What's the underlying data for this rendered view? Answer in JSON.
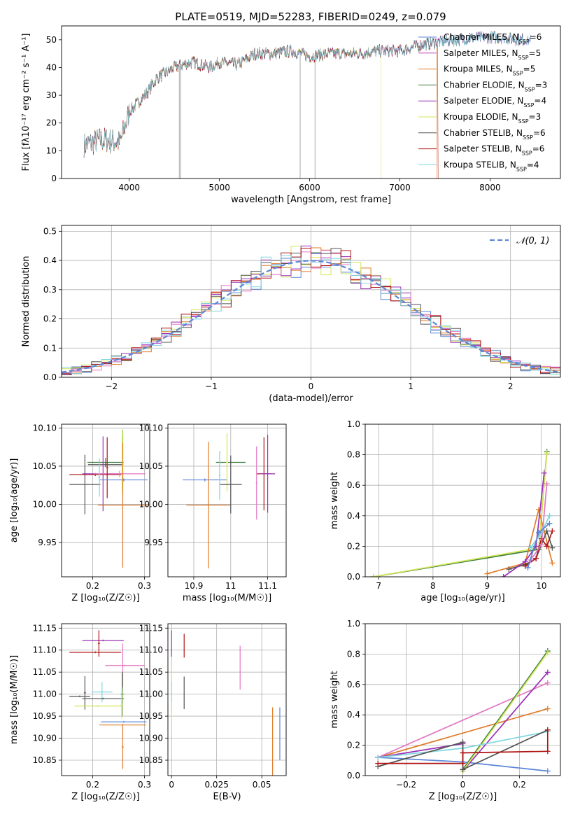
{
  "figure_title": "PLATE=0519, MJD=52283, FIBERID=0249, z=0.079",
  "colors": {
    "grid": "#b0b0b0",
    "Chabrier MILES": "#5b86d6",
    "Salpeter MILES": "#ba3fb8",
    "Kroupa MILES": "#e07b28",
    "Chabrier ELODIE": "#3a7d3a",
    "Salpeter ELODIE": "#9b2fb8",
    "Kroupa ELODIE": "#d4e65a",
    "Chabrier STELIB": "#555555",
    "Salpeter STELIB": "#b01515",
    "Kroupa STELIB": "#7fd6e0",
    "pink": "#e377c2",
    "lime": "#9ad03a"
  },
  "chart_data": [
    {
      "id": "spectrum",
      "type": "line",
      "title": "PLATE=0519, MJD=52283, FIBERID=0249, z=0.079",
      "xlabel": "wavelength [Angstrom, rest frame]",
      "ylabel": "Flux [fλ10⁻¹⁷ erg cm⁻² s⁻¹ A⁻¹]",
      "xlim": [
        3250,
        8780
      ],
      "ylim": [
        0,
        55
      ],
      "xticks": [
        4000,
        5000,
        6000,
        7000,
        8000
      ],
      "yticks": [
        0,
        10,
        20,
        30,
        40,
        50
      ],
      "grid": false,
      "legend_position": "top-right",
      "spectrum_trend": {
        "x": [
          3500,
          3700,
          3900,
          4000,
          4200,
          4300,
          4500,
          4700,
          4900,
          5000,
          5200,
          5400,
          5600,
          5800,
          5900,
          6000,
          6200,
          6500,
          6800,
          7000,
          7200,
          7400,
          7600,
          8000,
          8400
        ],
        "y": [
          12,
          14,
          13,
          24,
          31,
          36,
          40,
          42,
          40,
          42,
          41,
          45,
          45,
          46,
          45,
          44,
          45,
          45,
          46,
          46,
          48,
          49,
          50,
          51,
          50
        ]
      },
      "series": [
        {
          "name": "Chabrier MILES, N_SSP=6",
          "drop_x": null
        },
        {
          "name": "Salpeter MILES, N_SSP=5",
          "drop_x": null
        },
        {
          "name": "Kroupa MILES, N_SSP=5",
          "drop_x": 7410
        },
        {
          "name": "Chabrier ELODIE, N_SSP=3",
          "drop_x": null
        },
        {
          "name": "Salpeter ELODIE, N_SSP=4",
          "drop_x": null
        },
        {
          "name": "Kroupa ELODIE, N_SSP=3",
          "drop_x": 6790
        },
        {
          "name": "Chabrier STELIB, N_SSP=6",
          "drop_x": null
        },
        {
          "name": "Salpeter STELIB, N_SSP=6",
          "drop_x": 7420
        },
        {
          "name": "Kroupa STELIB, N_SSP=4",
          "drop_x": null
        }
      ],
      "legend_labels": [
        [
          "Chabrier MILES, N",
          "SSP",
          "=6"
        ],
        [
          "Salpeter MILES, N",
          "SSP",
          "=5"
        ],
        [
          "Kroupa MILES, N",
          "SSP",
          "=5"
        ],
        [
          "Chabrier ELODIE, N",
          "SSP",
          "=3"
        ],
        [
          "Salpeter ELODIE, N",
          "SSP",
          "=4"
        ],
        [
          "Kroupa ELODIE, N",
          "SSP",
          "=3"
        ],
        [
          "Chabrier STELIB, N",
          "SSP",
          "=6"
        ],
        [
          "Salpeter STELIB, N",
          "SSP",
          "=6"
        ],
        [
          "Kroupa STELIB, N",
          "SSP",
          "=4"
        ]
      ]
    },
    {
      "id": "residuals",
      "type": "line",
      "xlabel": "(data-model)/error",
      "ylabel": "Normed distribution",
      "xlim": [
        -2.5,
        2.5
      ],
      "ylim": [
        0,
        0.52
      ],
      "xticks": [
        -2,
        -1,
        0,
        1,
        2
      ],
      "yticks": [
        0.0,
        0.1,
        0.2,
        0.3,
        0.4,
        0.5
      ],
      "grid": true,
      "legend_position": "top-right",
      "reference_label": "𝒩(0, 1)",
      "reference": {
        "type": "gaussian",
        "mu": 0,
        "sigma": 1
      }
    },
    {
      "id": "age-vs-Z",
      "type": "scatter",
      "xlabel": "Z [log₁₀(Z/Z☉)]",
      "ylabel": "age  [log₁₀(age/yr)]",
      "xlim": [
        0.14,
        0.31
      ],
      "ylim": [
        9.905,
        10.105
      ],
      "xticks": [
        0.2,
        0.3
      ],
      "yticks": [
        9.95,
        10.0,
        10.05,
        10.1
      ],
      "grid": true,
      "points": [
        {
          "x": 0.185,
          "y": 10.026,
          "xerr": 0.03,
          "yerr": 0.039,
          "color": "Chabrier STELIB"
        },
        {
          "x": 0.225,
          "y": 10.055,
          "xerr": 0.035,
          "yerr": 0.006,
          "color": "Chabrier ELODIE"
        },
        {
          "x": 0.225,
          "y": 10.052,
          "xerr": 0.034,
          "yerr": 0.003,
          "color": "Chabrier STELIB"
        },
        {
          "x": 0.258,
          "y": 10.055,
          "xerr": 0.002,
          "yerr": 0.043,
          "color": "lime"
        },
        {
          "x": 0.257,
          "y": 10.054,
          "xerr": 0.002,
          "yerr": 0.037,
          "color": "Kroupa ELODIE"
        },
        {
          "x": 0.205,
          "y": 10.039,
          "xerr": 0.05,
          "yerr": 0.002,
          "color": "Salpeter STELIB"
        },
        {
          "x": 0.22,
          "y": 10.04,
          "xerr": 0.04,
          "yerr": 0.049,
          "color": "Salpeter ELODIE"
        },
        {
          "x": 0.252,
          "y": 10.04,
          "xerr": 0.05,
          "yerr": 0.004,
          "color": "pink"
        },
        {
          "x": 0.228,
          "y": 10.048,
          "xerr": 0.002,
          "yerr": 0.04,
          "color": "Salpeter STELIB"
        },
        {
          "x": 0.26,
          "y": 10.032,
          "xerr": 0.046,
          "yerr": 0.002,
          "color": "Chabrier MILES"
        },
        {
          "x": 0.213,
          "y": 10.035,
          "xerr": 0.002,
          "yerr": 0.025,
          "color": "Kroupa STELIB"
        },
        {
          "x": 0.258,
          "y": 9.999,
          "xerr": 0.048,
          "yerr": 0.082,
          "color": "Kroupa MILES"
        }
      ]
    },
    {
      "id": "age-vs-mass",
      "type": "scatter",
      "xlabel": "mass [log₁₀(M/M☉)]",
      "ylabel": "",
      "xlim": [
        10.83,
        11.15
      ],
      "ylim": [
        9.905,
        10.105
      ],
      "xticks": [
        10.9,
        11.0,
        11.1
      ],
      "yticks": [
        9.95,
        10.0,
        10.05,
        10.1
      ],
      "grid": true,
      "points": [
        {
          "x": 10.93,
          "y": 10.032,
          "xerr": 0.06,
          "yerr": 0.002,
          "color": "Chabrier MILES"
        },
        {
          "x": 10.94,
          "y": 9.999,
          "xerr": 0.06,
          "yerr": 0.083,
          "color": "Kroupa MILES"
        },
        {
          "x": 11.0,
          "y": 10.055,
          "xerr": 0.04,
          "yerr": 0.002,
          "color": "Chabrier ELODIE"
        },
        {
          "x": 10.99,
          "y": 10.055,
          "xerr": 0.003,
          "yerr": 0.038,
          "color": "Kroupa ELODIE"
        },
        {
          "x": 11.0,
          "y": 10.026,
          "xerr": 0.03,
          "yerr": 0.038,
          "color": "Chabrier STELIB"
        },
        {
          "x": 10.97,
          "y": 10.038,
          "xerr": 0.002,
          "yerr": 0.032,
          "color": "Kroupa STELIB"
        },
        {
          "x": 11.09,
          "y": 10.04,
          "xerr": 0.02,
          "yerr": 0.048,
          "color": "Salpeter STELIB"
        },
        {
          "x": 11.1,
          "y": 10.04,
          "xerr": 0.02,
          "yerr": 0.051,
          "color": "Salpeter ELODIE"
        },
        {
          "x": 11.07,
          "y": 10.028,
          "xerr": 0.002,
          "yerr": 0.048,
          "color": "pink"
        }
      ]
    },
    {
      "id": "weight-vs-age",
      "type": "line",
      "xlabel": "age  [log₁₀(age/yr)]",
      "ylabel": "mass weight",
      "xlim": [
        6.75,
        10.35
      ],
      "ylim": [
        0,
        1.0
      ],
      "xticks": [
        7,
        8,
        9,
        10
      ],
      "yticks": [
        0.0,
        0.2,
        0.4,
        0.6,
        0.8,
        1.0
      ],
      "grid": true,
      "series": [
        {
          "color": "Chabrier ELODIE",
          "x": [
            6.9,
            9.95,
            10.1
          ],
          "y": [
            0.0,
            0.18,
            0.82
          ]
        },
        {
          "color": "Kroupa ELODIE",
          "x": [
            6.9,
            9.95,
            10.1
          ],
          "y": [
            0.0,
            0.19,
            0.81
          ]
        },
        {
          "color": "Kroupa MILES",
          "x": [
            9.0,
            9.7,
            9.95,
            10.2
          ],
          "y": [
            0.02,
            0.09,
            0.44,
            0.09
          ]
        },
        {
          "color": "Chabrier STELIB",
          "x": [
            9.4,
            9.7,
            9.9,
            10.1,
            10.2
          ],
          "y": [
            0.05,
            0.08,
            0.12,
            0.3,
            0.19
          ]
        },
        {
          "color": "Salpeter ELODIE",
          "x": [
            9.3,
            9.7,
            9.9,
            10.05
          ],
          "y": [
            0.0,
            0.1,
            0.2,
            0.68
          ]
        },
        {
          "color": "Salpeter STELIB",
          "x": [
            9.7,
            9.9,
            10.0,
            10.1,
            10.2
          ],
          "y": [
            0.07,
            0.12,
            0.25,
            0.2,
            0.3
          ]
        },
        {
          "color": "pink",
          "x": [
            9.8,
            10.0,
            10.1
          ],
          "y": [
            0.11,
            0.21,
            0.61
          ]
        },
        {
          "color": "Kroupa STELIB",
          "x": [
            9.8,
            10.0,
            10.15
          ],
          "y": [
            0.19,
            0.29,
            0.4
          ]
        },
        {
          "color": "Chabrier MILES",
          "x": [
            9.75,
            9.95,
            10.15
          ],
          "y": [
            0.06,
            0.29,
            0.35
          ]
        }
      ]
    },
    {
      "id": "mass-vs-Z",
      "type": "scatter",
      "xlabel": "Z [log₁₀(Z/Z☉)]",
      "ylabel": "mass [log₁₀(M/M☉)]",
      "xlim": [
        0.14,
        0.31
      ],
      "ylim": [
        10.815,
        11.16
      ],
      "xticks": [
        0.2,
        0.3
      ],
      "yticks": [
        10.85,
        10.9,
        10.95,
        11.0,
        11.05,
        11.1,
        11.15
      ],
      "grid": true,
      "points": [
        {
          "x": 0.22,
          "y": 11.122,
          "xerr": 0.04,
          "yerr": 0.002,
          "color": "Salpeter ELODIE"
        },
        {
          "x": 0.205,
          "y": 11.095,
          "xerr": 0.05,
          "yerr": 0.002,
          "color": "Salpeter STELIB"
        },
        {
          "x": 0.212,
          "y": 11.115,
          "xerr": 0.002,
          "yerr": 0.03,
          "color": "Salpeter STELIB"
        },
        {
          "x": 0.262,
          "y": 11.065,
          "xerr": 0.038,
          "yerr": 0.002,
          "color": "pink"
        },
        {
          "x": 0.258,
          "y": 11.065,
          "xerr": 0.002,
          "yerr": 0.05,
          "color": "pink"
        },
        {
          "x": 0.175,
          "y": 10.995,
          "xerr": 0.02,
          "yerr": 0.002,
          "color": "Chabrier STELIB"
        },
        {
          "x": 0.185,
          "y": 11.003,
          "xerr": 0.002,
          "yerr": 0.038,
          "color": "Chabrier STELIB"
        },
        {
          "x": 0.218,
          "y": 11.005,
          "xerr": 0.02,
          "yerr": 0.023,
          "color": "Kroupa STELIB"
        },
        {
          "x": 0.22,
          "y": 10.99,
          "xerr": 0.04,
          "yerr": 0.002,
          "color": "Chabrier STELIB"
        },
        {
          "x": 0.257,
          "y": 11.0,
          "xerr": 0.003,
          "yerr": 0.05,
          "color": "Chabrier ELODIE"
        },
        {
          "x": 0.256,
          "y": 10.975,
          "xerr": 0.002,
          "yerr": 0.03,
          "color": "Kroupa ELODIE"
        },
        {
          "x": 0.21,
          "y": 10.973,
          "xerr": 0.045,
          "yerr": 0.002,
          "color": "Kroupa ELODIE"
        },
        {
          "x": 0.26,
          "y": 10.937,
          "xerr": 0.044,
          "yerr": 0.002,
          "color": "Chabrier MILES"
        },
        {
          "x": 0.258,
          "y": 10.93,
          "xerr": 0.045,
          "yerr": 0.002,
          "color": "Kroupa MILES"
        },
        {
          "x": 0.258,
          "y": 10.88,
          "xerr": 0.002,
          "yerr": 0.05,
          "color": "Kroupa MILES"
        }
      ]
    },
    {
      "id": "mass-vs-EBV",
      "type": "scatter",
      "xlabel": "E(B-V)",
      "ylabel": "",
      "xlim": [
        -0.002,
        0.0635
      ],
      "ylim": [
        10.815,
        11.16
      ],
      "xticks": [
        0.0,
        0.025,
        0.05
      ],
      "yticks": [
        10.85,
        10.9,
        10.95,
        11.0,
        11.05,
        11.1,
        11.15
      ],
      "grid": true,
      "points": [
        {
          "x": 0.0,
          "y": 11.115,
          "xerr": 0,
          "yerr": 0.03,
          "color": "Salpeter ELODIE"
        },
        {
          "x": 0.007,
          "y": 11.11,
          "xerr": 0,
          "yerr": 0.027,
          "color": "Salpeter STELIB"
        },
        {
          "x": 0.0,
          "y": 11.04,
          "xerr": 0,
          "yerr": 0.02,
          "color": "Kroupa ELODIE"
        },
        {
          "x": 0.0,
          "y": 11.005,
          "xerr": 0,
          "yerr": 0.023,
          "color": "Kroupa STELIB"
        },
        {
          "x": 0.007,
          "y": 11.003,
          "xerr": 0,
          "yerr": 0.037,
          "color": "Chabrier STELIB"
        },
        {
          "x": 0.0,
          "y": 10.955,
          "xerr": 0,
          "yerr": 0.015,
          "color": "Kroupa ELODIE"
        },
        {
          "x": 0.038,
          "y": 11.06,
          "xerr": 0,
          "yerr": 0.05,
          "color": "pink"
        },
        {
          "x": 0.056,
          "y": 10.88,
          "xerr": 0,
          "yerr": 0.09,
          "color": "Kroupa MILES"
        },
        {
          "x": 0.06,
          "y": 10.91,
          "xerr": 0,
          "yerr": 0.06,
          "color": "Chabrier MILES"
        }
      ]
    },
    {
      "id": "weight-vs-Z",
      "type": "line",
      "xlabel": "Z [log₁₀(Z/Z☉)]",
      "ylabel": "mass weight",
      "xlim": [
        -0.345,
        0.345
      ],
      "ylim": [
        0,
        1.0
      ],
      "xticks": [
        -0.2,
        0.0,
        0.2
      ],
      "yticks": [
        0.0,
        0.2,
        0.4,
        0.6,
        0.8,
        1.0
      ],
      "grid": true,
      "series": [
        {
          "color": "Chabrier MILES",
          "x": [
            -0.3,
            0.0,
            0.3
          ],
          "y": [
            0.12,
            0.09,
            0.03
          ]
        },
        {
          "color": "Kroupa MILES",
          "x": [
            -0.3,
            0.3
          ],
          "y": [
            0.12,
            0.44
          ]
        },
        {
          "color": "pink",
          "x": [
            -0.3,
            0.3
          ],
          "y": [
            0.12,
            0.61
          ]
        },
        {
          "color": "Salpeter ELODIE",
          "x": [
            -0.3,
            0.0,
            0.0,
            0.3
          ],
          "y": [
            0.12,
            0.21,
            0.03,
            0.68
          ]
        },
        {
          "color": "Chabrier ELODIE",
          "x": [
            0.0,
            0.3
          ],
          "y": [
            0.04,
            0.82
          ]
        },
        {
          "color": "Kroupa ELODIE",
          "x": [
            0.0,
            0.3
          ],
          "y": [
            0.03,
            0.81
          ]
        },
        {
          "color": "Kroupa STELIB",
          "x": [
            -0.3,
            0.0,
            0.3
          ],
          "y": [
            0.12,
            0.18,
            0.29
          ]
        },
        {
          "color": "Chabrier STELIB",
          "x": [
            -0.3,
            0.0,
            0.0,
            0.3
          ],
          "y": [
            0.06,
            0.22,
            0.04,
            0.3
          ]
        },
        {
          "color": "Salpeter STELIB",
          "x": [
            -0.3,
            0.0,
            0.0,
            0.3,
            0.3
          ],
          "y": [
            0.08,
            0.08,
            0.15,
            0.16,
            0.3
          ]
        }
      ]
    }
  ]
}
